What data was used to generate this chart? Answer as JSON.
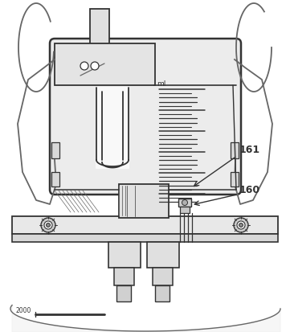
{
  "bg_color": "#ffffff",
  "line_color": "#666666",
  "dark_line": "#333333",
  "body_fill": "#e8e8e8",
  "label_fill": "#d8d8d8",
  "label_161": "161",
  "label_160": "160",
  "label_2000": "2000",
  "label_ml": "ml",
  "fig_width": 3.61,
  "fig_height": 4.14,
  "dpi": 100
}
